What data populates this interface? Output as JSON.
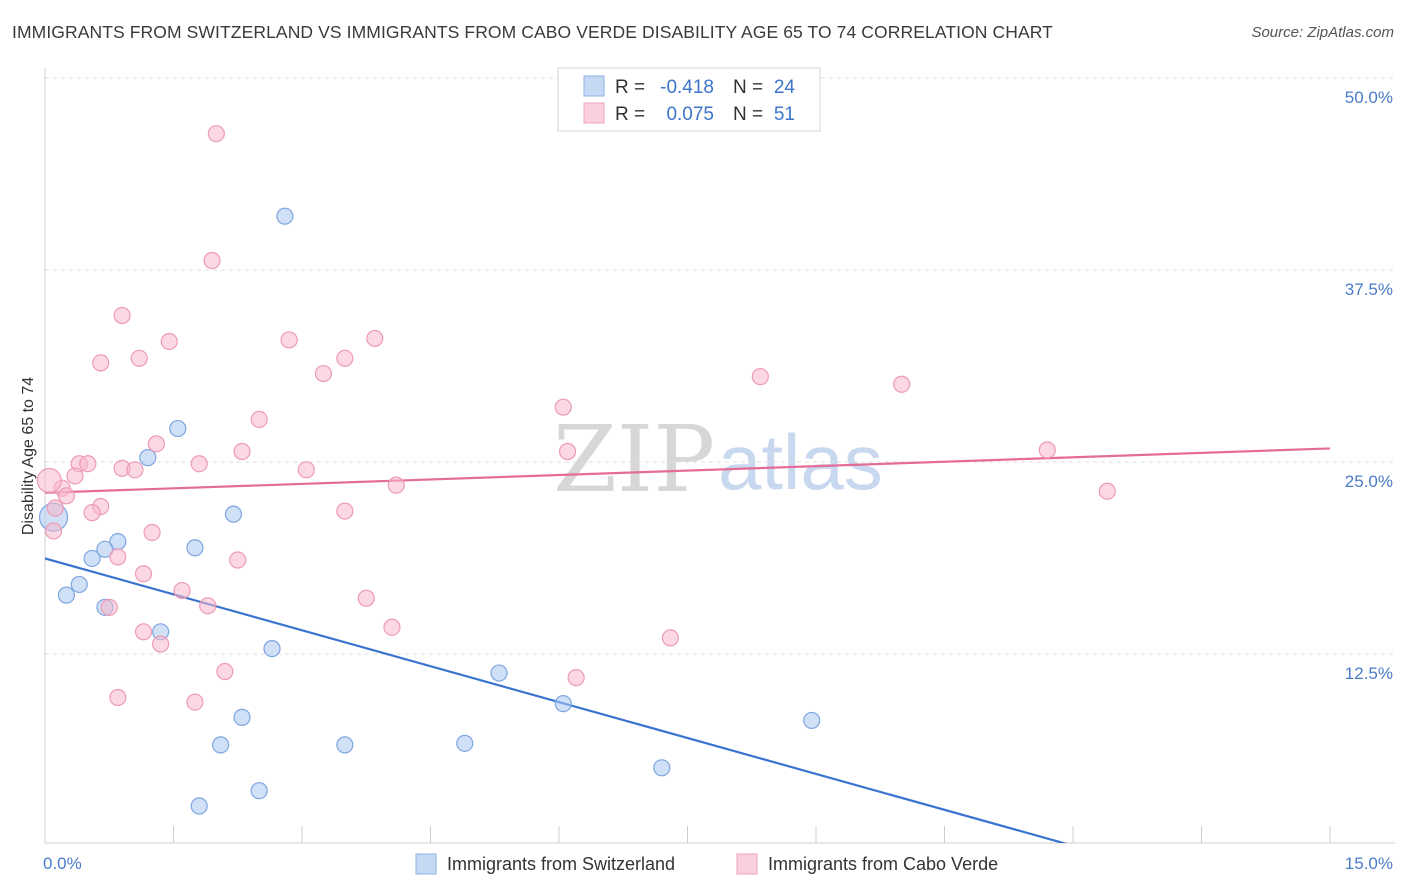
{
  "header": {
    "title": "IMMIGRANTS FROM SWITZERLAND VS IMMIGRANTS FROM CABO VERDE DISABILITY AGE 65 TO 74 CORRELATION CHART",
    "source": "Source: ZipAtlas.com"
  },
  "watermark": {
    "zip": "ZIP",
    "atlas": "atlas"
  },
  "legend": {
    "rows": [
      {
        "r_label": "R =",
        "r_value": "-0.418",
        "n_label": "N =",
        "n_value": "24",
        "color": "#a8c6f0"
      },
      {
        "r_label": "R =",
        "r_value": "0.075",
        "n_label": "N =",
        "n_value": "51",
        "color": "#f7b8cc"
      }
    ]
  },
  "chart_data": {
    "type": "scatter",
    "ylabel": "Disability Age 65 to 74",
    "xlim": [
      0,
      15
    ],
    "ylim": [
      0,
      50
    ],
    "y_ticks": [
      "50.0%",
      "37.5%",
      "25.0%",
      "12.5%"
    ],
    "y_tick_values": [
      50,
      37.5,
      25,
      12.5
    ],
    "x_tick_labels": [
      "0.0%",
      "15.0%"
    ],
    "x_tick_values": [
      0,
      15
    ],
    "colors": {
      "switzerland": "#3b74d0",
      "cabo_verde": "#e46c96"
    },
    "series": [
      {
        "name": "Immigrants from Switzerland",
        "points": [
          [
            2.8,
            42.2
          ],
          [
            1.55,
            28.3
          ],
          [
            1.2,
            26.4
          ],
          [
            2.2,
            22.7
          ],
          [
            0.55,
            19.8
          ],
          [
            0.85,
            20.9
          ],
          [
            1.75,
            20.5
          ],
          [
            0.7,
            20.4
          ],
          [
            0.4,
            18.1
          ],
          [
            0.25,
            17.4
          ],
          [
            0.7,
            16.6
          ],
          [
            1.35,
            15.0
          ],
          [
            2.65,
            13.9
          ],
          [
            5.3,
            12.3
          ],
          [
            6.05,
            10.3
          ],
          [
            2.3,
            9.4
          ],
          [
            8.95,
            9.2
          ],
          [
            2.05,
            7.6
          ],
          [
            3.5,
            7.6
          ],
          [
            4.9,
            7.7
          ],
          [
            7.2,
            6.1
          ],
          [
            2.5,
            4.6
          ],
          [
            1.8,
            3.6
          ],
          [
            0.1,
            22.5
          ]
        ],
        "trend": [
          [
            0,
            19.8
          ],
          [
            15,
            -3.7
          ]
        ]
      },
      {
        "name": "Immigrants from Cabo Verde",
        "points": [
          [
            2.0,
            47.6
          ],
          [
            1.95,
            39.3
          ],
          [
            0.9,
            35.7
          ],
          [
            1.45,
            34.0
          ],
          [
            2.85,
            34.1
          ],
          [
            3.85,
            34.2
          ],
          [
            0.65,
            32.6
          ],
          [
            1.1,
            32.9
          ],
          [
            3.5,
            32.9
          ],
          [
            3.25,
            31.9
          ],
          [
            8.35,
            31.7
          ],
          [
            10.0,
            31.2
          ],
          [
            6.05,
            29.7
          ],
          [
            2.5,
            28.9
          ],
          [
            1.3,
            27.3
          ],
          [
            2.3,
            26.8
          ],
          [
            6.1,
            26.8
          ],
          [
            11.7,
            26.9
          ],
          [
            0.4,
            26.0
          ],
          [
            0.5,
            26.0
          ],
          [
            1.8,
            26.0
          ],
          [
            0.9,
            25.7
          ],
          [
            1.05,
            25.6
          ],
          [
            3.05,
            25.6
          ],
          [
            0.35,
            25.2
          ],
          [
            0.2,
            24.4
          ],
          [
            4.1,
            24.6
          ],
          [
            0.25,
            23.9
          ],
          [
            0.12,
            23.1
          ],
          [
            0.65,
            23.2
          ],
          [
            0.55,
            22.8
          ],
          [
            3.5,
            22.9
          ],
          [
            12.4,
            24.2
          ],
          [
            0.1,
            21.6
          ],
          [
            1.25,
            21.5
          ],
          [
            2.25,
            19.7
          ],
          [
            0.85,
            19.9
          ],
          [
            1.15,
            18.8
          ],
          [
            1.6,
            17.7
          ],
          [
            3.75,
            17.2
          ],
          [
            0.75,
            16.6
          ],
          [
            1.9,
            16.7
          ],
          [
            1.15,
            15.0
          ],
          [
            4.05,
            15.3
          ],
          [
            1.35,
            14.2
          ],
          [
            7.3,
            14.6
          ],
          [
            2.1,
            12.4
          ],
          [
            6.2,
            12.0
          ],
          [
            0.85,
            10.7
          ],
          [
            1.75,
            10.4
          ],
          [
            0.05,
            24.9
          ]
        ],
        "trend": [
          [
            0,
            24.1
          ],
          [
            15,
            27.0
          ]
        ]
      }
    ]
  }
}
